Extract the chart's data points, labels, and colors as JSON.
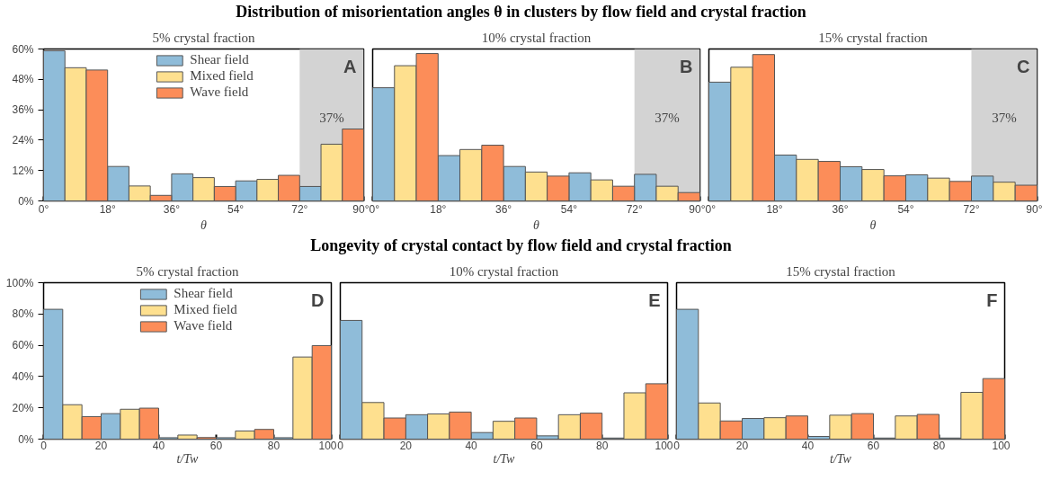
{
  "chart_data": [
    {
      "type": "bar",
      "title": "5% crystal fraction",
      "xlabel": "θ",
      "annotations": [
        "Distribution of misorientation angles θ in clusters by flow field and crystal fraction",
        "A"
      ],
      "legend": "top",
      "xlim": [
        0,
        90
      ],
      "xticks": [
        {
          "value": 0,
          "label": "0°"
        },
        {
          "value": 18,
          "label": "18°"
        },
        {
          "value": 36,
          "label": "36°"
        },
        {
          "value": 54,
          "label": "54°"
        },
        {
          "value": 72,
          "label": "72°"
        },
        {
          "value": 90,
          "label": "90°"
        }
      ],
      "ylim": [
        0,
        60
      ],
      "yticks": [
        {
          "value": 0,
          "label": "0%"
        },
        {
          "value": 12,
          "label": "12%"
        },
        {
          "value": 24,
          "label": "24%"
        },
        {
          "value": 36,
          "label": "36%"
        },
        {
          "value": 48,
          "label": "48%"
        },
        {
          "value": 60,
          "label": "60%"
        }
      ],
      "bands": [
        {
          "axis": "x",
          "from": 72,
          "to": 90,
          "label": "37%",
          "color": "#d3d3d3"
        }
      ],
      "series": [
        {
          "name": "Shear field",
          "color": "#8fbcd9",
          "x": [
            3,
            21,
            39,
            57,
            75
          ],
          "values": [
            59.3,
            13.6,
            10.7,
            7.9,
            5.7
          ]
        },
        {
          "name": "Mixed field",
          "color": "#fee08f",
          "x": [
            9,
            27,
            45,
            63,
            81
          ],
          "values": [
            52.6,
            5.9,
            9.2,
            8.5,
            22.4
          ]
        },
        {
          "name": "Wave field",
          "color": "#fc8d59",
          "x": [
            15,
            33,
            51,
            69,
            87
          ],
          "values": [
            51.7,
            2.2,
            5.7,
            10.1,
            28.4
          ]
        }
      ]
    },
    {
      "type": "bar",
      "title": "10% crystal fraction",
      "xlabel": "θ",
      "annotations": [
        "B"
      ],
      "tick_labels": "x",
      "xlim": [
        0,
        90
      ],
      "xticks": [
        {
          "value": 0,
          "label": "0°"
        },
        {
          "value": 18,
          "label": "18°"
        },
        {
          "value": 36,
          "label": "36°"
        },
        {
          "value": 54,
          "label": "54°"
        },
        {
          "value": 72,
          "label": "72°"
        },
        {
          "value": 90,
          "label": "90°"
        }
      ],
      "ylim": [
        0,
        60
      ],
      "bands": [
        {
          "axis": "x",
          "from": 72,
          "to": 90,
          "label": "37%",
          "color": "#d3d3d3"
        }
      ],
      "series": [
        {
          "color": "#8fbcd9",
          "x": [
            3,
            21,
            39,
            57,
            75
          ],
          "values": [
            44.7,
            17.9,
            13.6,
            11.1,
            10.5
          ]
        },
        {
          "color": "#fee08f",
          "x": [
            9,
            27,
            45,
            63,
            81
          ],
          "values": [
            53.4,
            20.3,
            11.4,
            8.3,
            5.8
          ]
        },
        {
          "color": "#fc8d59",
          "x": [
            15,
            33,
            51,
            69,
            87
          ],
          "values": [
            58.2,
            22.0,
            9.8,
            5.8,
            3.3
          ]
        }
      ]
    },
    {
      "type": "bar",
      "title": "15% crystal fraction",
      "xlabel": "θ",
      "annotations": [
        "C"
      ],
      "tick_labels": "x",
      "xlim": [
        0,
        90
      ],
      "xticks": [
        {
          "value": 0,
          "label": "0°"
        },
        {
          "value": 18,
          "label": "18°"
        },
        {
          "value": 36,
          "label": "36°"
        },
        {
          "value": 54,
          "label": "54°"
        },
        {
          "value": 72,
          "label": "72°"
        },
        {
          "value": 90,
          "label": "90°"
        }
      ],
      "ylim": [
        0,
        60
      ],
      "bands": [
        {
          "axis": "x",
          "from": 72,
          "to": 90,
          "label": "37%",
          "color": "#d3d3d3"
        }
      ],
      "series": [
        {
          "color": "#8fbcd9",
          "x": [
            3,
            21,
            39,
            57,
            75
          ],
          "values": [
            46.9,
            18.1,
            13.5,
            10.3,
            9.8
          ]
        },
        {
          "color": "#fee08f",
          "x": [
            9,
            27,
            45,
            63,
            81
          ],
          "values": [
            52.8,
            16.4,
            12.4,
            9.0,
            7.4
          ]
        },
        {
          "color": "#fc8d59",
          "x": [
            15,
            33,
            51,
            69,
            87
          ],
          "values": [
            57.8,
            15.6,
            9.9,
            7.7,
            6.2
          ]
        }
      ]
    },
    {
      "type": "bar",
      "title": "5% crystal fraction",
      "xlabel": "t/Tw",
      "annotations": [
        "Longevity of crystal contact by flow field and crystal fraction",
        "D"
      ],
      "legend": "top",
      "xlim": [
        0,
        100
      ],
      "xticks": [
        0,
        20,
        40,
        60,
        80,
        100
      ],
      "ylim": [
        0,
        100
      ],
      "yticks": [
        {
          "value": 0,
          "label": "0%"
        },
        {
          "value": 20,
          "label": "20%"
        },
        {
          "value": 40,
          "label": "40%"
        },
        {
          "value": 60,
          "label": "60%"
        },
        {
          "value": 80,
          "label": "80%"
        },
        {
          "value": 100,
          "label": "100%"
        }
      ],
      "series": [
        {
          "name": "Shear field",
          "color": "#8fbcd9",
          "x": [
            3.33,
            23.33,
            43.33,
            63.33,
            83.33
          ],
          "values": [
            83.0,
            16.3,
            0.9,
            0.9,
            0.9
          ]
        },
        {
          "name": "Mixed field",
          "color": "#fee08f",
          "x": [
            10,
            30,
            50,
            70,
            90
          ],
          "values": [
            22.0,
            19.1,
            2.6,
            5.2,
            52.5
          ]
        },
        {
          "name": "Wave field",
          "color": "#fc8d59",
          "x": [
            16.67,
            36.67,
            56.67,
            76.67,
            96.67
          ],
          "values": [
            14.4,
            19.8,
            1.0,
            6.2,
            59.8
          ]
        }
      ]
    },
    {
      "type": "bar",
      "title": "10% crystal fraction",
      "xlabel": "t/Tw",
      "annotations": [
        "E"
      ],
      "tick_labels": "x",
      "xlim": [
        0,
        100
      ],
      "xticks": [
        0,
        20,
        40,
        60,
        80,
        100
      ],
      "ylim": [
        0,
        100
      ],
      "series": [
        {
          "color": "#8fbcd9",
          "x": [
            3.33,
            23.33,
            43.33,
            63.33,
            83.33
          ],
          "values": [
            75.9,
            15.6,
            4.2,
            2.1,
            0.7
          ]
        },
        {
          "color": "#fee08f",
          "x": [
            10,
            30,
            50,
            70,
            90
          ],
          "values": [
            23.4,
            16.1,
            11.4,
            15.6,
            29.6
          ]
        },
        {
          "color": "#fc8d59",
          "x": [
            16.67,
            36.67,
            56.67,
            76.67,
            96.67
          ],
          "values": [
            13.5,
            17.3,
            13.5,
            16.6,
            35.4
          ]
        }
      ]
    },
    {
      "type": "bar",
      "title": "15% crystal fraction",
      "xlabel": "t/Tw",
      "annotations": [
        "F"
      ],
      "tick_labels": "x",
      "xlim": [
        0,
        100
      ],
      "xticks": [
        0,
        20,
        40,
        60,
        80,
        100
      ],
      "ylim": [
        0,
        100
      ],
      "series": [
        {
          "color": "#8fbcd9",
          "x": [
            3.33,
            23.33,
            43.33,
            63.33,
            83.33
          ],
          "values": [
            83.0,
            13.2,
            1.7,
            0.7,
            0.7
          ]
        },
        {
          "color": "#fee08f",
          "x": [
            10,
            30,
            50,
            70,
            90
          ],
          "values": [
            23.1,
            13.7,
            15.3,
            14.8,
            29.9
          ]
        },
        {
          "color": "#fc8d59",
          "x": [
            16.67,
            36.67,
            56.67,
            76.67,
            96.67
          ],
          "values": [
            11.6,
            14.8,
            16.3,
            15.8,
            38.7
          ]
        }
      ]
    }
  ]
}
